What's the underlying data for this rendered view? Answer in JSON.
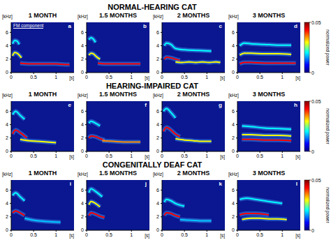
{
  "chart_data": [
    {
      "type": "line",
      "panel": "a",
      "group": "NORMAL-HEARING CAT",
      "title": "1 MONTH",
      "xlabel": "[s]",
      "ylabel": "[kHz]",
      "annotations": [
        "FM component"
      ],
      "xlim": [
        0,
        1.4
      ],
      "ylim": [
        0,
        7.5
      ],
      "xticks": [
        0,
        0.5,
        1
      ],
      "yticks": [
        0,
        2,
        4,
        6
      ],
      "series": [
        {
          "color": "#00ffff",
          "x": [
            0.03,
            0.08,
            0.13,
            0.18
          ],
          "values": [
            4.3,
            4.8,
            4.7,
            4.2
          ]
        },
        {
          "color": "#ffff00",
          "x": [
            0.03,
            0.08,
            0.13,
            0.18,
            0.23
          ],
          "values": [
            2.5,
            3.0,
            2.9,
            2.6,
            2.2
          ]
        },
        {
          "color": "#ff0000",
          "x": [
            0.2,
            0.4,
            0.6,
            0.8,
            1.0,
            1.2,
            1.3
          ],
          "values": [
            1.4,
            1.3,
            1.3,
            1.3,
            1.3,
            1.2,
            1.2
          ]
        }
      ]
    },
    {
      "type": "line",
      "panel": "b",
      "group": "NORMAL-HEARING CAT",
      "title": "1.5 MONTHS",
      "xlabel": "[s]",
      "ylabel": "[kHz]",
      "xlim": [
        0,
        1.4
      ],
      "ylim": [
        0,
        7.5
      ],
      "xticks": [
        0,
        0.5,
        1
      ],
      "yticks": [
        0,
        2,
        4,
        6
      ],
      "series": [
        {
          "color": "#00ffff",
          "x": [
            0.05,
            0.1,
            0.15,
            0.2
          ],
          "values": [
            4.9,
            5.2,
            5.0,
            4.5
          ]
        },
        {
          "color": "#ffff00",
          "x": [
            0.05,
            0.1,
            0.15,
            0.2,
            0.25,
            0.3
          ],
          "values": [
            2.6,
            2.9,
            2.8,
            2.5,
            2.2,
            2.0
          ]
        },
        {
          "color": "#ff0000",
          "x": [
            0.25,
            0.4,
            0.6,
            0.8,
            1.0,
            1.2
          ],
          "values": [
            1.4,
            1.3,
            1.3,
            1.3,
            1.3,
            1.3
          ]
        }
      ]
    },
    {
      "type": "line",
      "panel": "c",
      "group": "NORMAL-HEARING CAT",
      "title": "2 MONTHS",
      "xlabel": "[s]",
      "ylabel": "[kHz]",
      "xlim": [
        0,
        1.4
      ],
      "ylim": [
        0,
        7.5
      ],
      "xticks": [
        0,
        0.5,
        1
      ],
      "yticks": [
        0,
        2,
        4,
        6
      ],
      "series": [
        {
          "color": "#00ffff",
          "x": [
            0.05,
            0.1,
            0.2,
            0.3,
            0.5,
            0.8,
            1.1
          ],
          "values": [
            4.0,
            4.4,
            4.2,
            3.6,
            3.4,
            3.3,
            3.2
          ]
        },
        {
          "color": "#ff0000",
          "x": [
            0.05,
            0.1,
            0.2,
            0.3,
            0.4
          ],
          "values": [
            2.0,
            2.3,
            2.2,
            2.0,
            1.8
          ]
        },
        {
          "color": "#ffff00",
          "x": [
            0.3,
            0.45,
            0.6,
            0.75,
            0.9,
            1.05,
            1.2,
            1.3
          ],
          "values": [
            1.6,
            1.5,
            1.6,
            1.5,
            1.6,
            1.5,
            1.6,
            1.5
          ]
        }
      ]
    },
    {
      "type": "line",
      "panel": "d",
      "group": "NORMAL-HEARING CAT",
      "title": "3 MONTHS",
      "xlabel": "[s]",
      "ylabel": "[kHz]",
      "xlim": [
        0,
        1.4
      ],
      "ylim": [
        0,
        7.5
      ],
      "xticks": [
        0,
        0.5,
        1
      ],
      "yticks": [
        0,
        2,
        4,
        6
      ],
      "colorbar": {
        "range": [
          0,
          0.05
        ],
        "ticks": [
          0,
          0.05
        ],
        "label": "normalized power"
      },
      "series": [
        {
          "color": "#00ffff",
          "x": [
            0.05,
            0.15,
            0.3,
            0.6,
            0.9,
            1.2
          ],
          "values": [
            4.0,
            4.4,
            4.3,
            4.2,
            4.1,
            4.1
          ]
        },
        {
          "color": "#ffff00",
          "x": [
            0.05,
            0.15,
            0.3,
            0.6,
            0.9,
            1.2
          ],
          "values": [
            2.6,
            2.9,
            2.9,
            2.8,
            2.8,
            2.7
          ]
        },
        {
          "color": "#ff0000",
          "x": [
            0.05,
            0.15,
            0.3,
            0.6,
            0.9,
            1.2,
            1.3
          ],
          "values": [
            1.3,
            1.5,
            1.5,
            1.4,
            1.4,
            1.4,
            1.4
          ]
        }
      ]
    },
    {
      "type": "line",
      "panel": "e",
      "group": "HEARING-IMPAIRED CAT",
      "title": "1 MONTH",
      "xlabel": "[s]",
      "ylabel": "[kHz]",
      "xlim": [
        0,
        1.4
      ],
      "ylim": [
        0,
        7.5
      ],
      "xticks": [
        0,
        0.5,
        1
      ],
      "yticks": [
        0,
        2,
        4,
        6
      ],
      "series": [
        {
          "color": "#00ffff",
          "x": [
            0.03,
            0.1,
            0.2,
            0.3
          ],
          "values": [
            5.5,
            6.0,
            5.4,
            4.8
          ]
        },
        {
          "color": "#ff0000",
          "x": [
            0.03,
            0.1,
            0.2,
            0.3,
            0.35
          ],
          "values": [
            2.6,
            3.2,
            2.8,
            2.3,
            2.0
          ]
        },
        {
          "color": "#ffff00",
          "x": [
            0.2,
            0.4,
            0.6,
            0.8,
            1.0
          ],
          "values": [
            1.8,
            1.6,
            1.5,
            1.4,
            1.3
          ]
        }
      ]
    },
    {
      "type": "line",
      "panel": "f",
      "group": "HEARING-IMPAIRED CAT",
      "title": "1.5 MONTHS",
      "xlabel": "[s]",
      "ylabel": "[kHz]",
      "xlim": [
        0,
        1.4
      ],
      "ylim": [
        0,
        7.5
      ],
      "xticks": [
        0,
        0.5,
        1
      ],
      "yticks": [
        0,
        2,
        4,
        6
      ],
      "series": [
        {
          "color": "#00ffff",
          "x": [
            0.05,
            0.1,
            0.2,
            0.3
          ],
          "values": [
            4.2,
            4.5,
            4.2,
            3.8
          ]
        },
        {
          "color": "#ff0000",
          "x": [
            0.05,
            0.1,
            0.2,
            0.3,
            0.4
          ],
          "values": [
            2.0,
            2.3,
            2.2,
            1.9,
            1.7
          ]
        },
        {
          "color": "#ff8c00",
          "x": [
            0.35,
            0.6,
            0.9,
            1.2
          ],
          "values": [
            1.6,
            1.5,
            1.4,
            1.4
          ]
        }
      ]
    },
    {
      "type": "line",
      "panel": "g",
      "group": "HEARING-IMPAIRED CAT",
      "title": "2 MONTHS",
      "xlabel": "[s]",
      "ylabel": "[kHz]",
      "xlim": [
        0,
        1.4
      ],
      "ylim": [
        0,
        7.5
      ],
      "xticks": [
        0,
        0.5,
        1
      ],
      "yticks": [
        0,
        2,
        4,
        6
      ],
      "series": [
        {
          "color": "#00ffff",
          "x": [
            0.03,
            0.1,
            0.2,
            0.3
          ],
          "values": [
            6.0,
            6.4,
            5.8,
            5.0
          ]
        },
        {
          "color": "#ff0000",
          "x": [
            0.03,
            0.1,
            0.2,
            0.3,
            0.4
          ],
          "values": [
            3.0,
            3.6,
            3.2,
            2.6,
            2.2
          ]
        },
        {
          "color": "#ffff00",
          "x": [
            0.3,
            0.5,
            0.7,
            0.9,
            1.1
          ],
          "values": [
            1.9,
            1.7,
            1.6,
            1.5,
            1.5
          ]
        }
      ]
    },
    {
      "type": "line",
      "panel": "h",
      "group": "HEARING-IMPAIRED CAT",
      "title": "3 MONTHS",
      "xlabel": "[s]",
      "ylabel": "[kHz]",
      "xlim": [
        0,
        1.4
      ],
      "ylim": [
        0,
        7.5
      ],
      "xticks": [
        0,
        0.5,
        1
      ],
      "yticks": [
        0,
        2,
        4,
        6
      ],
      "colorbar": {
        "range": [
          0,
          0.05
        ],
        "ticks": [
          0,
          0.05
        ],
        "label": "normalized power"
      },
      "series": [
        {
          "color": "#00ffff",
          "x": [
            0.1,
            0.3,
            0.6,
            0.9,
            1.2
          ],
          "values": [
            3.8,
            3.7,
            3.5,
            3.4,
            3.3
          ]
        },
        {
          "color": "#ffff00",
          "x": [
            0.1,
            0.3,
            0.6,
            0.9,
            1.2
          ],
          "values": [
            2.5,
            2.5,
            2.4,
            2.4,
            2.3
          ]
        },
        {
          "color": "#ff0000",
          "x": [
            0.1,
            0.3,
            0.6,
            0.9,
            1.2
          ],
          "values": [
            1.8,
            1.8,
            1.7,
            1.7,
            1.6
          ]
        }
      ]
    },
    {
      "type": "line",
      "panel": "i",
      "group": "CONGENITALLY DEAF CAT",
      "title": "1 MONTH",
      "xlabel": "[s]",
      "ylabel": "[kHz]",
      "xlim": [
        0,
        1.4
      ],
      "ylim": [
        0,
        7.5
      ],
      "xticks": [
        0,
        0.5,
        1
      ],
      "yticks": [
        0,
        2,
        4,
        6
      ],
      "series": [
        {
          "color": "#00ffff",
          "x": [
            0.03,
            0.1,
            0.2,
            0.3
          ],
          "values": [
            5.2,
            5.6,
            5.0,
            4.4
          ]
        },
        {
          "color": "#ff0000",
          "x": [
            0.03,
            0.1,
            0.2,
            0.3
          ],
          "values": [
            2.6,
            2.9,
            2.6,
            2.2
          ]
        },
        {
          "color": "#00c8ff",
          "x": [
            0.3,
            0.5,
            0.8,
            1.1
          ],
          "values": [
            1.8,
            1.5,
            1.3,
            1.2
          ]
        }
      ]
    },
    {
      "type": "line",
      "panel": "j",
      "group": "CONGENITALLY DEAF CAT",
      "title": "1.5 MONTHS",
      "xlabel": "[s]",
      "ylabel": "[kHz]",
      "xlim": [
        0,
        1.4
      ],
      "ylim": [
        0,
        7.5
      ],
      "xticks": [
        0,
        0.5,
        1
      ],
      "yticks": [
        0,
        2,
        4,
        6
      ],
      "series": [
        {
          "color": "#ffff00",
          "x": [
            0.05,
            0.1,
            0.2,
            0.3
          ],
          "values": [
            3.8,
            4.3,
            4.0,
            3.5
          ]
        },
        {
          "color": "#ff0000",
          "x": [
            0.05,
            0.1,
            0.2,
            0.3,
            0.4
          ],
          "values": [
            2.2,
            2.6,
            2.4,
            2.1,
            1.9
          ]
        },
        {
          "color": "#00ffff",
          "x": [
            0.05,
            0.1,
            0.2,
            0.35
          ],
          "values": [
            5.6,
            6.2,
            5.8,
            5.0
          ]
        }
      ]
    },
    {
      "type": "line",
      "panel": "k",
      "group": "CONGENITALLY DEAF CAT",
      "title": "2 MONTHS",
      "xlabel": "[s]",
      "ylabel": "[kHz]",
      "xlim": [
        0,
        1.4
      ],
      "ylim": [
        0,
        7.5
      ],
      "xticks": [
        0,
        0.5,
        1
      ],
      "yticks": [
        0,
        2,
        4,
        6
      ],
      "series": [
        {
          "color": "#00ffff",
          "x": [
            0.05,
            0.1,
            0.2,
            0.3,
            0.5
          ],
          "values": [
            4.2,
            4.6,
            4.4,
            4.0,
            3.6
          ]
        },
        {
          "color": "#ff0000",
          "x": [
            0.05,
            0.1,
            0.2,
            0.3,
            0.4
          ],
          "values": [
            2.2,
            2.6,
            2.5,
            2.2,
            2.0
          ]
        },
        {
          "color": "#00c8ff",
          "x": [
            0.4,
            0.6,
            0.9,
            1.1
          ],
          "values": [
            1.6,
            1.5,
            1.4,
            1.4
          ]
        }
      ]
    },
    {
      "type": "line",
      "panel": "l",
      "group": "CONGENITALLY DEAF CAT",
      "title": "3 MONTHS",
      "xlabel": "[s]",
      "ylabel": "[kHz]",
      "xlim": [
        0,
        1.4
      ],
      "ylim": [
        0,
        7.5
      ],
      "xticks": [
        0,
        0.5,
        1
      ],
      "yticks": [
        0,
        2,
        4,
        6
      ],
      "colorbar": {
        "range": [
          0,
          0.05
        ],
        "ticks": [
          0,
          0.05
        ],
        "label": "normalized power"
      },
      "series": [
        {
          "color": "#00ffff",
          "x": [
            0.05,
            0.2,
            0.4,
            0.6,
            0.8,
            1.0
          ],
          "values": [
            4.6,
            4.8,
            4.6,
            4.4,
            4.2,
            4.0
          ]
        },
        {
          "color": "#ff0000",
          "x": [
            0.05,
            0.2,
            0.4,
            0.6,
            0.7
          ],
          "values": [
            2.3,
            2.5,
            2.5,
            2.4,
            2.3
          ]
        },
        {
          "color": "#ffff00",
          "x": [
            0.1,
            0.3,
            0.5,
            0.7,
            0.9,
            1.1
          ],
          "values": [
            1.6,
            1.8,
            1.8,
            1.7,
            1.7,
            1.6
          ]
        }
      ]
    }
  ]
}
